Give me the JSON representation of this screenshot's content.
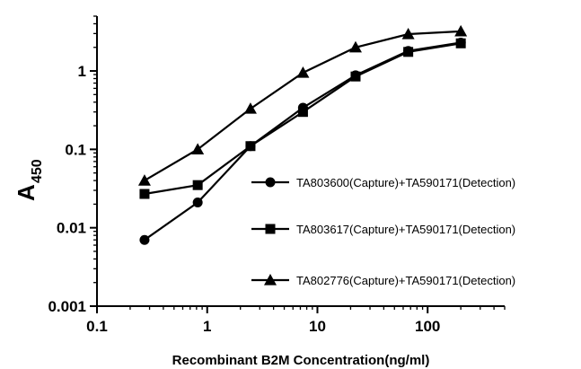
{
  "chart_data": {
    "type": "line",
    "xlabel": "Recombinant B2M Concentration(ng/ml)",
    "ylabel": "A",
    "ylabel_subscript": "450",
    "x_scale": "log",
    "y_scale": "log",
    "xlim": [
      0.1,
      500
    ],
    "ylim": [
      0.001,
      5
    ],
    "x_ticks": [
      {
        "value": 0.1,
        "label": "0.1"
      },
      {
        "value": 1,
        "label": "1"
      },
      {
        "value": 10,
        "label": "10"
      },
      {
        "value": 100,
        "label": "100"
      }
    ],
    "y_ticks": [
      {
        "value": 0.001,
        "label": "0.001"
      },
      {
        "value": 0.01,
        "label": "0.01"
      },
      {
        "value": 0.1,
        "label": "0.1"
      },
      {
        "value": 1,
        "label": "1"
      }
    ],
    "grid": false,
    "legend_position": "center-right",
    "series": [
      {
        "name": "TA803600(Capture)+TA590171(Detection)",
        "marker": "circle",
        "x": [
          0.27,
          0.82,
          2.47,
          7.4,
          22.2,
          66.7,
          200
        ],
        "y": [
          0.007,
          0.021,
          0.11,
          0.34,
          0.88,
          1.8,
          2.3
        ]
      },
      {
        "name": "TA803617(Capture)+TA590171(Detection)",
        "marker": "square",
        "x": [
          0.27,
          0.82,
          2.47,
          7.4,
          22.2,
          66.7,
          200
        ],
        "y": [
          0.027,
          0.035,
          0.11,
          0.3,
          0.85,
          1.75,
          2.25
        ]
      },
      {
        "name": "TA802776(Capture)+TA590171(Detection)",
        "marker": "triangle",
        "x": [
          0.27,
          0.82,
          2.47,
          7.4,
          22.2,
          66.7,
          200
        ],
        "y": [
          0.04,
          0.1,
          0.33,
          0.95,
          2.0,
          2.95,
          3.2
        ]
      }
    ]
  }
}
